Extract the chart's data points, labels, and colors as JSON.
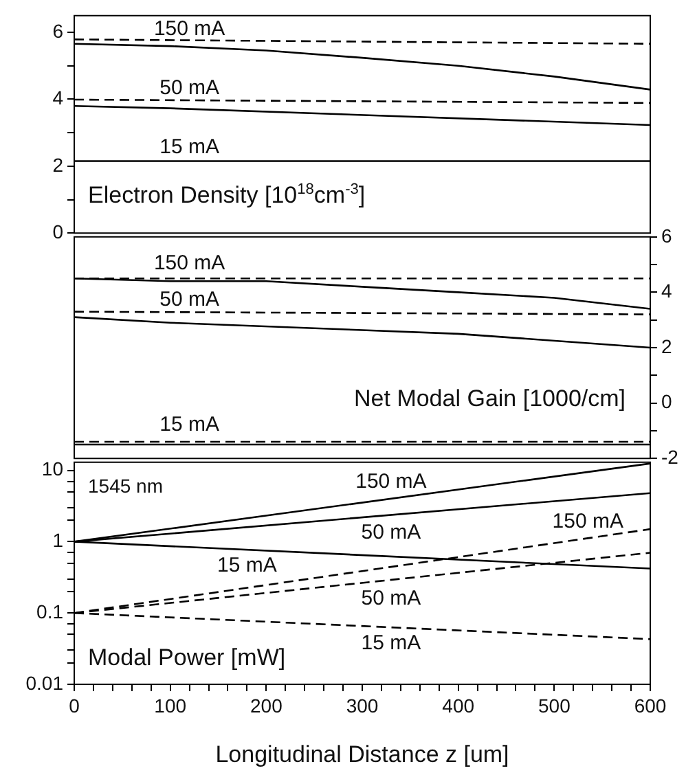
{
  "chart_data": [
    {
      "type": "line",
      "title": "Electron Density [10$^{18}$cm$^{-3}$]",
      "xlim": [
        0,
        600
      ],
      "ylim": [
        0,
        6.5
      ],
      "yticks": [
        0,
        {
          "value": 1,
          "label": null
        },
        2,
        {
          "value": 3,
          "label": null
        },
        4,
        {
          "value": 5,
          "label": null
        },
        6
      ],
      "tick_labels": "y",
      "grid": false,
      "legend": false,
      "marker": "none",
      "line_style": "solid",
      "series": [
        {
          "color": "#000000",
          "line_style": "dashed",
          "x": [
            0,
            600
          ],
          "values": [
            5.79,
            5.66
          ]
        },
        {
          "name": "150 mA",
          "color": "#000000",
          "x": [
            0,
            100,
            200,
            300,
            400,
            500,
            600
          ],
          "values": [
            5.66,
            5.59,
            5.46,
            5.24,
            5.0,
            4.68,
            4.29
          ]
        },
        {
          "color": "#000000",
          "line_style": "dashed",
          "x": [
            0,
            600
          ],
          "values": [
            3.99,
            3.89
          ]
        },
        {
          "name": "50 mA",
          "color": "#000000",
          "x": [
            0,
            100,
            600
          ],
          "values": [
            3.8,
            3.73,
            3.23
          ]
        },
        {
          "name": "15 mA",
          "color": "#000000",
          "x": [
            0,
            600
          ],
          "values": [
            2.15,
            2.15
          ]
        }
      ]
    },
    {
      "type": "line",
      "title": "Net Modal Gain [1000/cm]",
      "xlim": [
        0,
        600
      ],
      "y2lim": [
        -2,
        6
      ],
      "y2ticks": [
        -2,
        {
          "value": -1,
          "label": null
        },
        0,
        {
          "value": 1,
          "label": null
        },
        2,
        {
          "value": 3,
          "label": null
        },
        4,
        {
          "value": 5,
          "label": null
        },
        6
      ],
      "tick_labels": "y2",
      "grid": false,
      "legend": false,
      "marker": "none",
      "line_style": "solid",
      "series": [
        {
          "color": "#000000",
          "axis": "y2",
          "line_style": "dashed",
          "x": [
            0,
            600
          ],
          "values": [
            4.5,
            4.5
          ]
        },
        {
          "name": "150 mA",
          "color": "#000000",
          "axis": "y2",
          "x": [
            0,
            100,
            200,
            300,
            400,
            500,
            600
          ],
          "values": [
            4.5,
            4.4,
            4.4,
            4.2,
            4.0,
            3.8,
            3.4
          ]
        },
        {
          "color": "#000000",
          "axis": "y2",
          "line_style": "dashed",
          "x": [
            0,
            600
          ],
          "values": [
            3.3,
            3.2
          ]
        },
        {
          "name": "50 mA",
          "color": "#000000",
          "axis": "y2",
          "x": [
            0,
            100,
            400,
            600
          ],
          "values": [
            3.1,
            2.9,
            2.5,
            2.0
          ]
        },
        {
          "name": "15 mA",
          "color": "#000000",
          "axis": "y2",
          "line_style": "dashed",
          "x": [
            0,
            600
          ],
          "values": [
            -1.4,
            -1.4
          ]
        },
        {
          "color": "#000000",
          "axis": "y2",
          "x": [
            0,
            600
          ],
          "values": [
            -1.5,
            -1.5
          ]
        }
      ]
    },
    {
      "type": "line",
      "title": "Modal Power [mW]",
      "xlabel": "Longitudinal Distance z [um]",
      "annotations": [
        "1545 nm"
      ],
      "log": true,
      "xlim": [
        0,
        600
      ],
      "xticks": [
        0,
        {
          "value": 20,
          "label": null
        },
        {
          "value": 40,
          "label": null
        },
        {
          "value": 60,
          "label": null
        },
        {
          "value": 80,
          "label": null
        },
        100,
        {
          "value": 120,
          "label": null
        },
        {
          "value": 140,
          "label": null
        },
        {
          "value": 160,
          "label": null
        },
        {
          "value": 180,
          "label": null
        },
        200,
        {
          "value": 220,
          "label": null
        },
        {
          "value": 240,
          "label": null
        },
        {
          "value": 260,
          "label": null
        },
        {
          "value": 280,
          "label": null
        },
        300,
        {
          "value": 320,
          "label": null
        },
        {
          "value": 340,
          "label": null
        },
        {
          "value": 360,
          "label": null
        },
        {
          "value": 380,
          "label": null
        },
        400,
        {
          "value": 420,
          "label": null
        },
        {
          "value": 440,
          "label": null
        },
        {
          "value": 460,
          "label": null
        },
        {
          "value": 480,
          "label": null
        },
        500,
        {
          "value": 520,
          "label": null
        },
        {
          "value": 540,
          "label": null
        },
        {
          "value": 560,
          "label": null
        },
        {
          "value": 580,
          "label": null
        },
        600
      ],
      "ylim": [
        0.01,
        13
      ],
      "yticks": [
        0.01,
        {
          "value": 0.02,
          "label": null
        },
        {
          "value": 0.03,
          "label": null
        },
        {
          "value": 0.05,
          "label": null
        },
        {
          "value": 0.07,
          "label": null
        },
        0.1,
        {
          "value": 0.2,
          "label": null
        },
        {
          "value": 0.3,
          "label": null
        },
        {
          "value": 0.5,
          "label": null
        },
        {
          "value": 0.7,
          "label": null
        },
        1,
        {
          "value": 2,
          "label": null
        },
        {
          "value": 3,
          "label": null
        },
        {
          "value": 5,
          "label": null
        },
        {
          "value": 7,
          "label": null
        },
        10
      ],
      "grid": false,
      "legend": false,
      "marker": "none",
      "line_style": "solid",
      "series": [
        {
          "name": "150 mA",
          "color": "#000000",
          "x": [
            0,
            600
          ],
          "values": [
            1,
            12.5
          ]
        },
        {
          "name": "50 mA",
          "color": "#000000",
          "x": [
            0,
            600
          ],
          "values": [
            1,
            4.8
          ]
        },
        {
          "name": "15 mA",
          "color": "#000000",
          "x": [
            0,
            600
          ],
          "values": [
            1,
            0.42
          ]
        },
        {
          "name": "150 mA",
          "color": "#000000",
          "line_style": "dashed",
          "x": [
            0,
            600
          ],
          "values": [
            0.1,
            1.5
          ]
        },
        {
          "name": "50 mA",
          "color": "#000000",
          "line_style": "dashed",
          "x": [
            0,
            600
          ],
          "values": [
            0.1,
            0.7
          ]
        },
        {
          "name": "15 mA",
          "color": "#000000",
          "line_style": "dashed",
          "x": [
            0,
            600
          ],
          "values": [
            0.1,
            0.043
          ]
        }
      ]
    }
  ]
}
